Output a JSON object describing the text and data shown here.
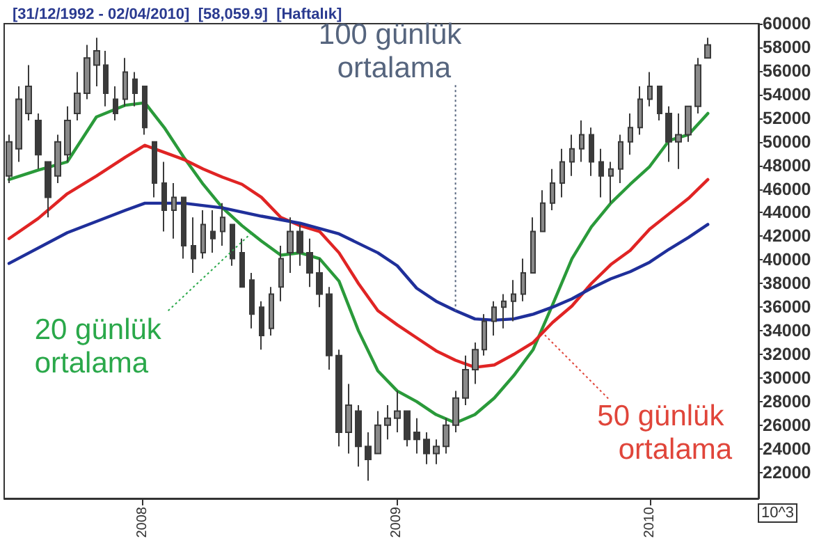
{
  "chart_data": {
    "type": "candlestick",
    "title": "[31/12/1992 - 02/04/2010]  [58,059.9]  [Haftalık]",
    "ylabel": "10^3",
    "color": "#3a3a3a",
    "x": [
      "2007-06-22",
      "2007-07-06",
      "2007-07-20",
      "2007-08-03",
      "2007-08-17",
      "2007-08-31",
      "2007-09-14",
      "2007-09-28",
      "2007-10-12",
      "2007-10-26",
      "2007-11-09",
      "2007-11-23",
      "2007-12-07",
      "2007-12-21",
      "2008-01-04",
      "2008-01-18",
      "2008-02-01",
      "2008-02-15",
      "2008-02-29",
      "2008-03-14",
      "2008-03-28",
      "2008-04-11",
      "2008-04-25",
      "2008-05-09",
      "2008-05-23",
      "2008-06-06",
      "2008-06-20",
      "2008-07-04",
      "2008-07-18",
      "2008-08-01",
      "2008-08-15",
      "2008-08-29",
      "2008-09-12",
      "2008-09-26",
      "2008-10-10",
      "2008-10-24",
      "2008-11-07",
      "2008-11-21",
      "2008-12-05",
      "2008-12-19",
      "2009-01-02",
      "2009-01-16",
      "2009-01-30",
      "2009-02-13",
      "2009-02-27",
      "2009-03-13",
      "2009-03-27",
      "2009-04-10",
      "2009-04-24",
      "2009-05-08",
      "2009-05-22",
      "2009-06-05",
      "2009-06-19",
      "2009-07-03",
      "2009-07-17",
      "2009-07-31",
      "2009-08-14",
      "2009-08-28",
      "2009-09-11",
      "2009-09-25",
      "2009-10-09",
      "2009-10-23",
      "2009-11-06",
      "2009-11-20",
      "2009-12-04",
      "2009-12-18",
      "2010-01-01",
      "2010-01-15",
      "2010-01-29",
      "2010-02-12",
      "2010-02-26",
      "2010-03-12",
      "2010-03-26"
    ],
    "ohlc": [
      [
        47100,
        50600,
        46500,
        50000
      ],
      [
        49400,
        54700,
        48300,
        53600
      ],
      [
        52400,
        56500,
        51800,
        54700
      ],
      [
        51800,
        52400,
        47700,
        48900
      ],
      [
        48300,
        48300,
        43600,
        45300
      ],
      [
        47100,
        50600,
        46500,
        50000
      ],
      [
        48900,
        53000,
        48300,
        51800
      ],
      [
        52400,
        55900,
        51800,
        54100
      ],
      [
        54100,
        58200,
        53600,
        57100
      ],
      [
        56500,
        58800,
        54700,
        57700
      ],
      [
        56500,
        57700,
        53000,
        54100
      ],
      [
        53600,
        54700,
        51800,
        52400
      ],
      [
        53600,
        57100,
        53000,
        55900
      ],
      [
        55300,
        55900,
        53000,
        54100
      ],
      [
        54700,
        54700,
        50600,
        51200
      ],
      [
        50000,
        50000,
        45300,
        46500
      ],
      [
        46500,
        48300,
        42400,
        44200
      ],
      [
        44200,
        46500,
        41800,
        45300
      ],
      [
        45300,
        45300,
        40100,
        41200
      ],
      [
        41200,
        43600,
        38900,
        40100
      ],
      [
        40600,
        44200,
        40100,
        43000
      ],
      [
        42400,
        44200,
        40600,
        41800
      ],
      [
        42400,
        44800,
        41200,
        43600
      ],
      [
        43000,
        43000,
        39500,
        40100
      ],
      [
        40600,
        41800,
        37700,
        37700
      ],
      [
        38300,
        38900,
        34200,
        35400
      ],
      [
        36000,
        36500,
        32400,
        33600
      ],
      [
        34200,
        37700,
        33600,
        37100
      ],
      [
        37700,
        41200,
        36500,
        40100
      ],
      [
        40600,
        43600,
        38900,
        42400
      ],
      [
        42400,
        43000,
        39500,
        40600
      ],
      [
        40600,
        41800,
        37700,
        38900
      ],
      [
        38900,
        40100,
        36000,
        37100
      ],
      [
        37100,
        37700,
        30700,
        31900
      ],
      [
        31900,
        32400,
        24200,
        25400
      ],
      [
        25400,
        29500,
        23600,
        27700
      ],
      [
        27200,
        27700,
        22500,
        24200
      ],
      [
        24200,
        25400,
        21300,
        23100
      ],
      [
        23600,
        27200,
        23600,
        26000
      ],
      [
        26000,
        27700,
        24800,
        26600
      ],
      [
        26600,
        28900,
        25400,
        27200
      ],
      [
        27200,
        27200,
        24200,
        24800
      ],
      [
        25400,
        26600,
        23600,
        24800
      ],
      [
        24800,
        25400,
        22700,
        23600
      ],
      [
        23600,
        24800,
        22700,
        24200
      ],
      [
        24200,
        26600,
        23600,
        26000
      ],
      [
        26000,
        28900,
        25400,
        28300
      ],
      [
        28300,
        31900,
        27700,
        30700
      ],
      [
        30700,
        33000,
        29500,
        32400
      ],
      [
        32400,
        35400,
        31900,
        34800
      ],
      [
        34800,
        36500,
        33600,
        36000
      ],
      [
        36000,
        37100,
        34200,
        36500
      ],
      [
        36500,
        38300,
        34800,
        37100
      ],
      [
        37100,
        40100,
        36500,
        38900
      ],
      [
        38900,
        43600,
        38900,
        42400
      ],
      [
        42400,
        45900,
        42400,
        44800
      ],
      [
        44800,
        47700,
        44200,
        46500
      ],
      [
        46500,
        49400,
        45300,
        48300
      ],
      [
        48300,
        50600,
        47100,
        49400
      ],
      [
        49400,
        51800,
        48300,
        50600
      ],
      [
        50600,
        51200,
        47100,
        48300
      ],
      [
        48300,
        49400,
        45300,
        47100
      ],
      [
        47100,
        48300,
        44800,
        47700
      ],
      [
        47700,
        50600,
        46500,
        50000
      ],
      [
        50000,
        52400,
        48900,
        51200
      ],
      [
        51200,
        54700,
        50600,
        53600
      ],
      [
        53600,
        55900,
        53000,
        54700
      ],
      [
        54700,
        54700,
        51800,
        52400
      ],
      [
        52400,
        53000,
        48300,
        50000
      ],
      [
        50000,
        52400,
        47700,
        50600
      ],
      [
        50600,
        53000,
        50000,
        53000
      ],
      [
        53000,
        57100,
        52400,
        56500
      ],
      [
        57100,
        58800,
        57100,
        58200
      ]
    ],
    "series": [
      {
        "type": "line",
        "color": "#2a9a3a",
        "x": [
          "2007-06-22",
          "2007-08-03",
          "2007-09-14",
          "2007-10-26",
          "2007-12-07",
          "2008-01-04",
          "2008-02-01",
          "2008-02-29",
          "2008-03-28",
          "2008-04-25",
          "2008-05-23",
          "2008-06-20",
          "2008-07-18",
          "2008-08-15",
          "2008-09-12",
          "2008-10-10",
          "2008-11-07",
          "2008-12-05",
          "2009-01-02",
          "2009-01-30",
          "2009-02-27",
          "2009-03-27",
          "2009-04-24",
          "2009-05-22",
          "2009-06-19",
          "2009-07-17",
          "2009-08-14",
          "2009-09-11",
          "2009-10-09",
          "2009-11-06",
          "2009-12-04",
          "2010-01-01",
          "2010-01-29",
          "2010-02-26",
          "2010-03-26"
        ],
        "values": [
          46800,
          47600,
          48300,
          52100,
          53100,
          53300,
          51200,
          48700,
          46400,
          44400,
          42900,
          41600,
          40400,
          40600,
          40100,
          38200,
          34000,
          30600,
          28900,
          28000,
          26900,
          26200,
          26900,
          28300,
          30200,
          32400,
          36200,
          40100,
          42800,
          44800,
          46400,
          47900,
          50100,
          50600,
          52400
        ]
      },
      {
        "type": "line",
        "color": "#e02424",
        "x": [
          "2007-06-22",
          "2007-08-03",
          "2007-09-14",
          "2007-10-26",
          "2007-12-07",
          "2008-01-04",
          "2008-02-01",
          "2008-02-29",
          "2008-03-28",
          "2008-04-25",
          "2008-05-23",
          "2008-06-20",
          "2008-07-18",
          "2008-08-15",
          "2008-09-12",
          "2008-10-10",
          "2008-11-07",
          "2008-12-05",
          "2009-01-02",
          "2009-01-30",
          "2009-02-27",
          "2009-03-27",
          "2009-04-24",
          "2009-05-22",
          "2009-06-19",
          "2009-07-17",
          "2009-08-14",
          "2009-09-11",
          "2009-10-09",
          "2009-11-06",
          "2009-12-04",
          "2010-01-01",
          "2010-01-29",
          "2010-02-26",
          "2010-03-26"
        ],
        "values": [
          41800,
          43500,
          45600,
          47100,
          48700,
          49700,
          49100,
          48500,
          47700,
          47000,
          46400,
          45300,
          43600,
          42900,
          42400,
          40600,
          38000,
          35700,
          34500,
          33400,
          32300,
          31500,
          30900,
          31100,
          32000,
          33000,
          34700,
          36100,
          38000,
          39600,
          40800,
          42600,
          43900,
          45200,
          46800
        ]
      },
      {
        "type": "line",
        "color": "#1f2f9a",
        "x": [
          "2007-06-22",
          "2007-09-14",
          "2007-12-07",
          "2008-01-04",
          "2008-02-29",
          "2008-04-25",
          "2008-06-20",
          "2008-08-15",
          "2008-10-10",
          "2008-12-05",
          "2009-01-02",
          "2009-01-30",
          "2009-02-27",
          "2009-03-27",
          "2009-04-24",
          "2009-05-22",
          "2009-06-19",
          "2009-07-17",
          "2009-08-14",
          "2009-09-11",
          "2009-10-09",
          "2009-11-06",
          "2009-12-04",
          "2010-01-01",
          "2010-01-29",
          "2010-02-26",
          "2010-03-26"
        ],
        "values": [
          39700,
          42300,
          44200,
          44800,
          44800,
          44400,
          43700,
          43100,
          42200,
          40600,
          39500,
          37600,
          36500,
          35700,
          35000,
          34900,
          35000,
          35400,
          36000,
          36700,
          37600,
          38400,
          39000,
          39800,
          40900,
          41900,
          43000
        ]
      }
    ],
    "xlim": [
      "2007-06-15",
      "2010-06-07"
    ],
    "xticks": [
      {
        "value": "2008-01-01",
        "label": "2008"
      },
      {
        "value": "2009-01-01",
        "label": "2009"
      },
      {
        "value": "2010-01-01",
        "label": "2010"
      }
    ],
    "ylim": [
      19800,
      60000
    ],
    "yticks": [
      22000,
      24000,
      26000,
      28000,
      30000,
      32000,
      34000,
      36000,
      38000,
      40000,
      42000,
      44000,
      46000,
      48000,
      50000,
      52000,
      54000,
      56000,
      58000,
      60000
    ],
    "annotations": [
      {
        "text": "100 günlük ortalama",
        "x": "2009-03-27",
        "y": 35700
      },
      {
        "text": "20 günlük ortalama",
        "x": "2008-06-06",
        "y": 42300
      },
      {
        "text": "50 günlük ortalama",
        "x": "2009-07-31",
        "y": 33800
      }
    ]
  }
}
